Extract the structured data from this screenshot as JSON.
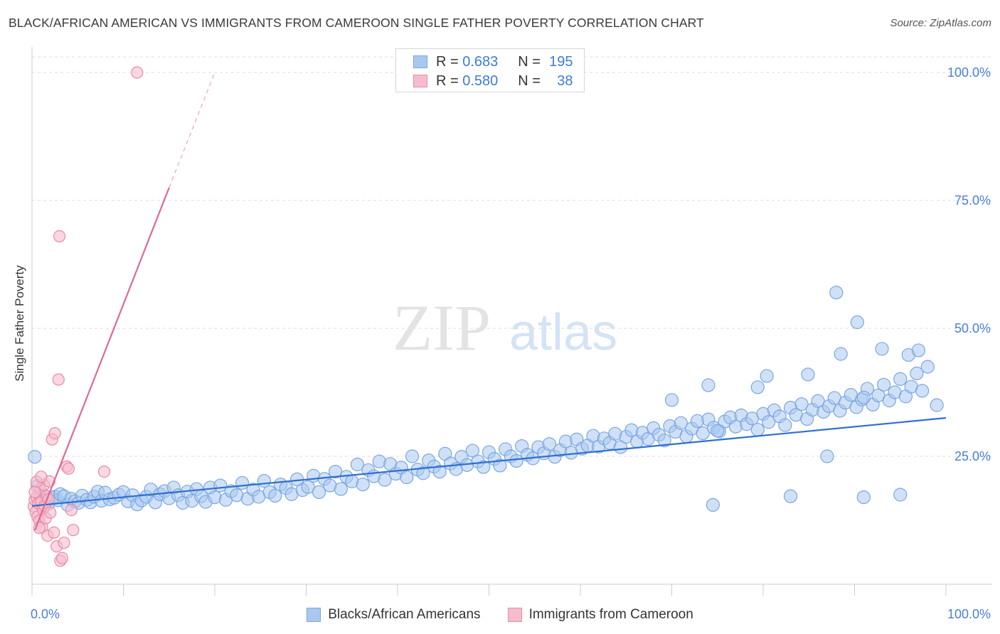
{
  "title": "BLACK/AFRICAN AMERICAN VS IMMIGRANTS FROM CAMEROON SINGLE FATHER POVERTY CORRELATION CHART",
  "source": "Source: ZipAtlas.com",
  "watermark": {
    "zip": "ZIP",
    "atlas": "atlas"
  },
  "legend": {
    "rows": [
      {
        "r_label": "R =",
        "r_value": "0.683",
        "n_label": "N =",
        "n_value": "195"
      },
      {
        "r_label": "R =",
        "r_value": "0.580",
        "n_label": "N =",
        "n_value": "38"
      }
    ]
  },
  "bottom_legend": [
    "Blacks/African Americans",
    "Immigrants from Cameroon"
  ],
  "colors": {
    "blue_fill": "#a9c8f0",
    "blue_stroke": "#7aa6e0",
    "blue_line": "#2f6fd0",
    "pink_fill": "#f6bccd",
    "pink_stroke": "#e88aa6",
    "pink_line": "#e0679a",
    "tick_text": "#4a7fd4",
    "grid": "#dddddd"
  },
  "chart_data": {
    "type": "scatter",
    "title": "BLACK/AFRICAN AMERICAN VS IMMIGRANTS FROM CAMEROON SINGLE FATHER POVERTY CORRELATION CHART",
    "xlabel": "",
    "ylabel": "Single Father Poverty",
    "xlim": [
      0,
      100
    ],
    "ylim": [
      0,
      105
    ],
    "x_tick_labels": [
      "0.0%",
      "100.0%"
    ],
    "y_tick_labels": [
      {
        "value": 100,
        "label": "100.0%"
      },
      {
        "value": 75,
        "label": "75.0%"
      },
      {
        "value": 50,
        "label": "50.0%"
      },
      {
        "value": 25,
        "label": "25.0%"
      }
    ],
    "grid": true,
    "legend_position": "top-center",
    "series": [
      {
        "name": "Blacks/African Americans",
        "R": 0.683,
        "N": 195,
        "trend": {
          "x": [
            0,
            100
          ],
          "y": [
            15.3,
            32.5
          ]
        },
        "points": [
          [
            0.3,
            24.9
          ],
          [
            0.6,
            19.2
          ],
          [
            0.9,
            16.8
          ],
          [
            1.2,
            17.5
          ],
          [
            1.5,
            16.1
          ],
          [
            1.8,
            15.8
          ],
          [
            2.2,
            16.9
          ],
          [
            2.5,
            17.1
          ],
          [
            2.8,
            16.4
          ],
          [
            3.1,
            17.6
          ],
          [
            3.5,
            17.2
          ],
          [
            3.9,
            15.5
          ],
          [
            4.3,
            16.7
          ],
          [
            4.7,
            16.2
          ],
          [
            5.1,
            15.9
          ],
          [
            5.5,
            17.3
          ],
          [
            6.0,
            16.5
          ],
          [
            6.4,
            16.0
          ],
          [
            6.8,
            17.1
          ],
          [
            7.2,
            18.1
          ],
          [
            7.6,
            16.3
          ],
          [
            8.0,
            17.9
          ],
          [
            8.5,
            16.6
          ],
          [
            9.0,
            16.9
          ],
          [
            9.5,
            17.5
          ],
          [
            10.0,
            18.0
          ],
          [
            10.5,
            16.2
          ],
          [
            11.0,
            17.4
          ],
          [
            11.5,
            15.6
          ],
          [
            12.0,
            16.4
          ],
          [
            12.5,
            17.1
          ],
          [
            13.0,
            18.5
          ],
          [
            13.5,
            16.0
          ],
          [
            14.0,
            17.6
          ],
          [
            14.5,
            18.2
          ],
          [
            15.0,
            16.8
          ],
          [
            15.5,
            18.9
          ],
          [
            16.0,
            17.4
          ],
          [
            16.5,
            15.9
          ],
          [
            17.0,
            18.1
          ],
          [
            17.5,
            16.3
          ],
          [
            18.0,
            18.6
          ],
          [
            18.5,
            17.2
          ],
          [
            19.0,
            16.1
          ],
          [
            19.5,
            18.9
          ],
          [
            20.0,
            17.0
          ],
          [
            20.6,
            19.3
          ],
          [
            21.2,
            16.5
          ],
          [
            21.8,
            18.2
          ],
          [
            22.4,
            17.4
          ],
          [
            23.0,
            19.8
          ],
          [
            23.6,
            16.7
          ],
          [
            24.2,
            18.5
          ],
          [
            24.8,
            17.1
          ],
          [
            25.4,
            20.2
          ],
          [
            26.0,
            18.0
          ],
          [
            26.6,
            17.3
          ],
          [
            27.2,
            19.5
          ],
          [
            27.8,
            18.8
          ],
          [
            28.4,
            17.6
          ],
          [
            29.0,
            20.5
          ],
          [
            29.6,
            18.4
          ],
          [
            30.2,
            19.0
          ],
          [
            30.8,
            21.2
          ],
          [
            31.4,
            18.0
          ],
          [
            32.0,
            20.6
          ],
          [
            32.6,
            19.3
          ],
          [
            33.2,
            22.0
          ],
          [
            33.8,
            18.6
          ],
          [
            34.4,
            21.0
          ],
          [
            35.0,
            20.1
          ],
          [
            35.6,
            23.4
          ],
          [
            36.2,
            19.5
          ],
          [
            36.8,
            22.3
          ],
          [
            37.4,
            21.1
          ],
          [
            38.0,
            24.0
          ],
          [
            38.6,
            20.4
          ],
          [
            39.2,
            23.5
          ],
          [
            39.8,
            21.6
          ],
          [
            40.4,
            22.8
          ],
          [
            41.0,
            20.9
          ],
          [
            41.6,
            25.0
          ],
          [
            42.2,
            22.4
          ],
          [
            42.8,
            21.7
          ],
          [
            43.4,
            24.2
          ],
          [
            44.0,
            23.0
          ],
          [
            44.6,
            22.0
          ],
          [
            45.2,
            25.5
          ],
          [
            45.8,
            23.6
          ],
          [
            46.4,
            22.5
          ],
          [
            47.0,
            24.9
          ],
          [
            47.6,
            23.3
          ],
          [
            48.2,
            26.1
          ],
          [
            48.8,
            24.0
          ],
          [
            49.4,
            22.9
          ],
          [
            50.0,
            25.8
          ],
          [
            50.6,
            24.5
          ],
          [
            51.2,
            23.2
          ],
          [
            51.8,
            26.4
          ],
          [
            52.4,
            25.0
          ],
          [
            53.0,
            24.1
          ],
          [
            53.6,
            27.0
          ],
          [
            54.2,
            25.3
          ],
          [
            54.8,
            24.6
          ],
          [
            55.4,
            26.8
          ],
          [
            56.0,
            25.6
          ],
          [
            56.6,
            27.4
          ],
          [
            57.2,
            24.9
          ],
          [
            57.8,
            26.2
          ],
          [
            58.4,
            27.9
          ],
          [
            59.0,
            25.7
          ],
          [
            59.6,
            28.3
          ],
          [
            60.2,
            26.5
          ],
          [
            60.8,
            27.1
          ],
          [
            61.4,
            29.0
          ],
          [
            62.0,
            26.9
          ],
          [
            62.6,
            28.5
          ],
          [
            63.2,
            27.6
          ],
          [
            63.8,
            29.4
          ],
          [
            64.4,
            26.8
          ],
          [
            65.0,
            28.8
          ],
          [
            65.6,
            30.1
          ],
          [
            66.2,
            27.9
          ],
          [
            66.8,
            29.6
          ],
          [
            67.4,
            28.4
          ],
          [
            68.0,
            30.5
          ],
          [
            68.6,
            29.2
          ],
          [
            69.2,
            28.1
          ],
          [
            69.8,
            30.9
          ],
          [
            70.4,
            29.8
          ],
          [
            71.0,
            31.5
          ],
          [
            71.6,
            28.9
          ],
          [
            72.2,
            30.4
          ],
          [
            72.8,
            31.9
          ],
          [
            73.4,
            29.5
          ],
          [
            74.0,
            32.2
          ],
          [
            74.6,
            30.6
          ],
          [
            75.2,
            29.9
          ],
          [
            75.8,
            31.8
          ],
          [
            76.4,
            32.6
          ],
          [
            77.0,
            30.8
          ],
          [
            77.6,
            33.0
          ],
          [
            78.2,
            31.3
          ],
          [
            78.8,
            32.4
          ],
          [
            79.4,
            30.2
          ],
          [
            80.0,
            33.3
          ],
          [
            80.6,
            31.7
          ],
          [
            81.2,
            34.0
          ],
          [
            81.8,
            32.8
          ],
          [
            82.4,
            31.1
          ],
          [
            83.0,
            34.5
          ],
          [
            83.6,
            33.1
          ],
          [
            84.2,
            35.2
          ],
          [
            84.8,
            32.3
          ],
          [
            85.4,
            34.1
          ],
          [
            86.0,
            35.8
          ],
          [
            86.6,
            33.7
          ],
          [
            87.2,
            34.8
          ],
          [
            87.8,
            36.4
          ],
          [
            88.4,
            33.9
          ],
          [
            89.0,
            35.5
          ],
          [
            89.6,
            37.0
          ],
          [
            90.2,
            34.6
          ],
          [
            90.8,
            36.1
          ],
          [
            91.4,
            38.2
          ],
          [
            92.0,
            35.1
          ],
          [
            92.6,
            36.9
          ],
          [
            93.2,
            39.0
          ],
          [
            93.8,
            35.9
          ],
          [
            94.4,
            37.5
          ],
          [
            95.0,
            40.1
          ],
          [
            95.6,
            36.7
          ],
          [
            96.2,
            38.6
          ],
          [
            96.8,
            41.2
          ],
          [
            97.4,
            37.8
          ],
          [
            98.0,
            42.5
          ],
          [
            75.0,
            30.0
          ],
          [
            87.0,
            25.0
          ],
          [
            91.0,
            36.5
          ],
          [
            88.5,
            45.0
          ],
          [
            90.3,
            51.2
          ],
          [
            93.0,
            46.0
          ],
          [
            95.9,
            44.8
          ],
          [
            97.0,
            45.7
          ],
          [
            99.0,
            35.0
          ],
          [
            70.0,
            36.0
          ],
          [
            74.0,
            38.9
          ],
          [
            80.4,
            40.7
          ],
          [
            84.9,
            41.0
          ],
          [
            79.4,
            38.5
          ],
          [
            88.0,
            57.0
          ],
          [
            95.0,
            17.5
          ],
          [
            91.0,
            17.0
          ],
          [
            83.0,
            17.2
          ],
          [
            74.5,
            15.5
          ]
        ]
      },
      {
        "name": "Immigrants from Cameroon",
        "R": 0.58,
        "N": 38,
        "trend": {
          "x": [
            0.3,
            15.0
          ],
          "y": [
            10.5,
            77.5
          ]
        },
        "trend_dashed": {
          "x": [
            15.0,
            20.0
          ],
          "y": [
            77.5,
            100
          ]
        },
        "points": [
          [
            0.2,
            15.2
          ],
          [
            0.3,
            16.5
          ],
          [
            0.4,
            14.1
          ],
          [
            0.5,
            17.0
          ],
          [
            0.6,
            13.2
          ],
          [
            0.7,
            15.8
          ],
          [
            0.8,
            12.4
          ],
          [
            0.9,
            18.6
          ],
          [
            1.0,
            16.1
          ],
          [
            1.1,
            11.2
          ],
          [
            1.2,
            14.6
          ],
          [
            1.3,
            19.4
          ],
          [
            1.4,
            15.3
          ],
          [
            1.5,
            12.9
          ],
          [
            1.6,
            17.2
          ],
          [
            1.7,
            9.5
          ],
          [
            1.8,
            16.6
          ],
          [
            1.9,
            20.1
          ],
          [
            2.0,
            14.0
          ],
          [
            2.2,
            28.3
          ],
          [
            2.4,
            10.1
          ],
          [
            2.5,
            29.5
          ],
          [
            2.7,
            7.4
          ],
          [
            2.9,
            40.0
          ],
          [
            3.1,
            4.6
          ],
          [
            3.0,
            68.0
          ],
          [
            3.3,
            5.1
          ],
          [
            3.5,
            8.1
          ],
          [
            3.8,
            23.0
          ],
          [
            4.0,
            22.6
          ],
          [
            4.3,
            14.5
          ],
          [
            4.5,
            10.6
          ],
          [
            7.9,
            22.0
          ],
          [
            11.5,
            100.0
          ],
          [
            0.5,
            20.0
          ],
          [
            1.0,
            21.0
          ],
          [
            0.3,
            18.0
          ],
          [
            0.8,
            11.0
          ]
        ]
      }
    ]
  }
}
